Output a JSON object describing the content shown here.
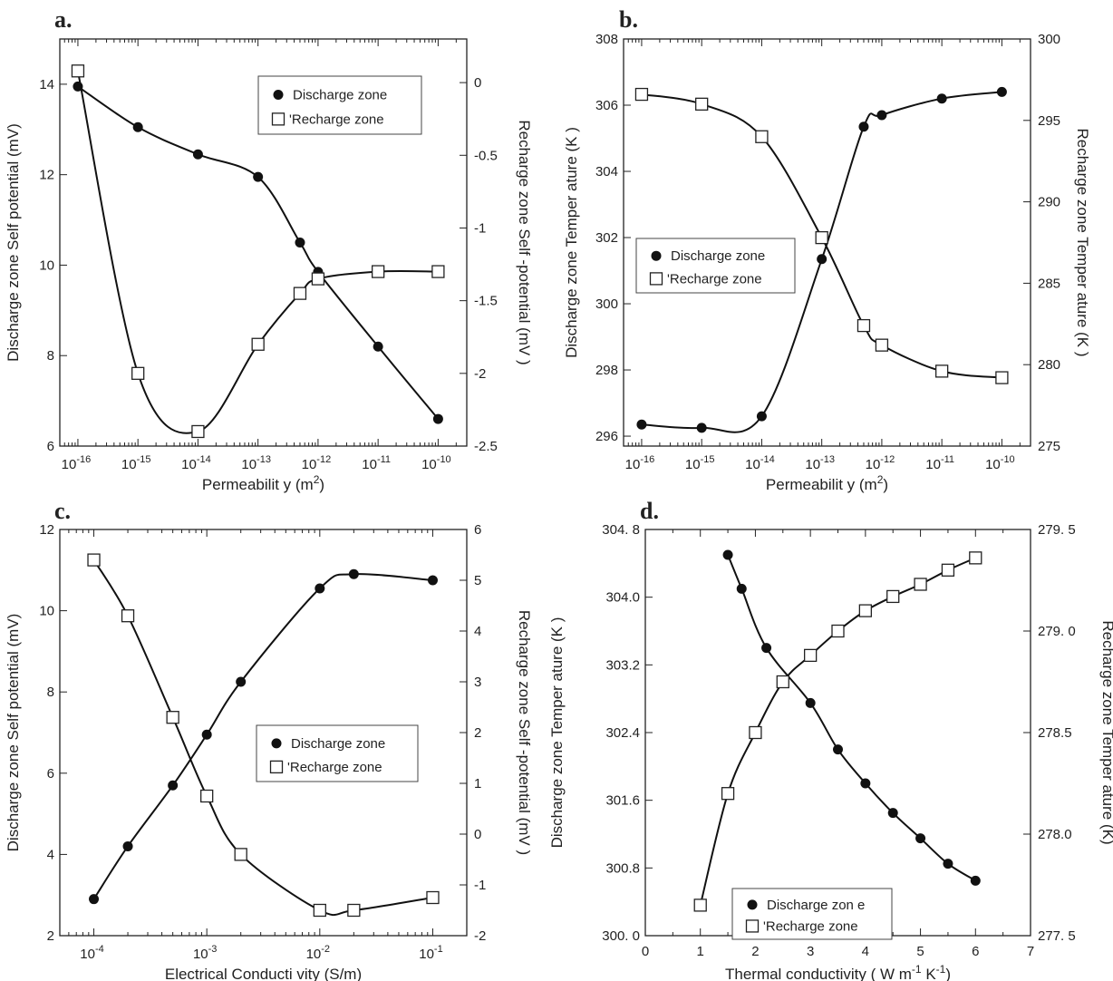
{
  "chart_data": [
    {
      "panel": "a.",
      "type": "line",
      "xscale": "log",
      "xlabel": "Permeabilit y (m",
      "xlabel_sup": "2",
      "xlabel_end": ")",
      "ylabel_left": "Discharge zone Self    potential (mV)",
      "ylabel_right": "Recharge zone Self   -potential (mV  )",
      "xlim": [
        5e-17,
        3e-10
      ],
      "ylim_left": [
        6,
        15
      ],
      "ylim_right": [
        -2.5,
        0.3
      ],
      "x_ticks": [
        {
          "base": "10",
          "exp": "-16",
          "value": 1e-16
        },
        {
          "base": "10",
          "exp": "-15",
          "value": 1e-15
        },
        {
          "base": "10",
          "exp": "-14",
          "value": 1e-14
        },
        {
          "base": "10",
          "exp": "-13",
          "value": 1e-13
        },
        {
          "base": "10",
          "exp": "-12",
          "value": 1e-12
        },
        {
          "base": "10",
          "exp": "-11",
          "value": 1e-11
        },
        {
          "base": "10",
          "exp": "-10",
          "value": 1e-10
        }
      ],
      "y_ticks_left": [
        "6",
        "8",
        "10",
        "12",
        "14"
      ],
      "y_ticks_right": [
        "-2.5",
        "-2",
        "-1.5",
        "-1",
        "-0.5",
        "0"
      ],
      "legend": [
        "Discharge zone",
        "'Recharge zone"
      ],
      "legend_position": "top-right",
      "series": [
        {
          "name": "Discharge zone",
          "axis": "left",
          "marker": "filled-circle",
          "x": [
            1e-16,
            1e-15,
            1e-14,
            1e-13,
            5e-13,
            1e-12,
            1e-11,
            1e-10
          ],
          "y": [
            13.95,
            13.05,
            12.45,
            11.95,
            10.5,
            9.85,
            8.2,
            6.6
          ]
        },
        {
          "name": "'Recharge zone",
          "axis": "right",
          "marker": "open-square",
          "x": [
            1e-16,
            1e-15,
            1e-14,
            1e-13,
            5e-13,
            1e-12,
            1e-11,
            1e-10
          ],
          "y": [
            0.08,
            -2.0,
            -2.4,
            -1.8,
            -1.45,
            -1.35,
            -1.3,
            -1.3
          ]
        }
      ]
    },
    {
      "panel": "b.",
      "type": "line",
      "xscale": "log",
      "xlabel": "Permeabilit y (m",
      "xlabel_sup": "2",
      "xlabel_end": ")",
      "ylabel_left": "Discharge zone   Temper ature (K )",
      "ylabel_right": "Recharge zone   Temper ature (K )",
      "xlim": [
        5e-17,
        3e-10
      ],
      "ylim_left": [
        295.7,
        308
      ],
      "ylim_right": [
        275,
        300
      ],
      "x_ticks": [
        {
          "base": "10",
          "exp": "-16",
          "value": 1e-16
        },
        {
          "base": "10",
          "exp": "-15",
          "value": 1e-15
        },
        {
          "base": "10",
          "exp": "-14",
          "value": 1e-14
        },
        {
          "base": "10",
          "exp": "-13",
          "value": 1e-13
        },
        {
          "base": "10",
          "exp": "-12",
          "value": 1e-12
        },
        {
          "base": "10",
          "exp": "-11",
          "value": 1e-11
        },
        {
          "base": "10",
          "exp": "-10",
          "value": 1e-10
        }
      ],
      "y_ticks_left": [
        "296",
        "298",
        "300",
        "302",
        "304",
        "306",
        "308"
      ],
      "y_ticks_right": [
        "275",
        "280",
        "285",
        "290",
        "295",
        "300"
      ],
      "legend": [
        "Discharge zone",
        "'Recharge zone"
      ],
      "legend_position": "center-left",
      "series": [
        {
          "name": "Discharge zone",
          "axis": "left",
          "marker": "filled-circle",
          "x": [
            1e-16,
            1e-15,
            1e-14,
            1e-13,
            5e-13,
            1e-12,
            1e-11,
            1e-10
          ],
          "y": [
            296.35,
            296.25,
            296.6,
            301.35,
            305.35,
            305.7,
            306.2,
            306.4
          ]
        },
        {
          "name": "'Recharge zone",
          "axis": "right",
          "marker": "open-square",
          "x": [
            1e-16,
            1e-15,
            1e-14,
            1e-13,
            5e-13,
            1e-12,
            1e-11,
            1e-10
          ],
          "y": [
            296.6,
            296.0,
            294.0,
            287.8,
            282.4,
            281.2,
            279.6,
            279.2
          ]
        }
      ]
    },
    {
      "panel": "c.",
      "type": "line",
      "xscale": "log",
      "xlabel": "Electrical Conducti  vity (S/m)",
      "ylabel_left": "Discharge zone Self    potential (mV)",
      "ylabel_right": "Recharge zone    Self -potential (mV  )",
      "xlim": [
        5e-05,
        0.2
      ],
      "ylim_left": [
        2,
        12
      ],
      "ylim_right": [
        -2,
        6
      ],
      "x_ticks": [
        {
          "base": "10",
          "exp": "-4",
          "value": 0.0001
        },
        {
          "base": "10",
          "exp": "-3",
          "value": 0.001
        },
        {
          "base": "10",
          "exp": "-2",
          "value": 0.01
        },
        {
          "base": "10",
          "exp": "-1",
          "value": 0.1
        }
      ],
      "y_ticks_left": [
        "2",
        "4",
        "6",
        "8",
        "10",
        "12"
      ],
      "y_ticks_right": [
        "-2",
        "-1",
        "0",
        "1",
        "2",
        "3",
        "4",
        "5",
        "6"
      ],
      "legend": [
        "Discharge zone",
        "'Recharge zone"
      ],
      "legend_position": "center-right",
      "series": [
        {
          "name": "Discharge zone",
          "axis": "left",
          "marker": "filled-circle",
          "x": [
            0.0001,
            0.0002,
            0.0005,
            0.001,
            0.002,
            0.01,
            0.02,
            0.1
          ],
          "y": [
            2.9,
            4.2,
            5.7,
            6.95,
            8.25,
            10.55,
            10.9,
            10.75
          ]
        },
        {
          "name": "'Recharge zone",
          "axis": "right",
          "marker": "open-square",
          "x": [
            0.0001,
            0.0002,
            0.0005,
            0.001,
            0.002,
            0.01,
            0.02,
            0.1
          ],
          "y": [
            5.4,
            4.3,
            2.3,
            0.75,
            -0.4,
            -1.5,
            -1.5,
            -1.25
          ]
        }
      ]
    },
    {
      "panel": "d.",
      "type": "line",
      "xscale": "linear",
      "xlabel": "Thermal conductivity (  W  m",
      "xlabel_sup": "-1",
      "xlabel_mid": " K",
      "xlabel_sup2": "-1",
      "xlabel_end": ")",
      "ylabel_left": "Discharge zone   Temper ature (K )",
      "ylabel_right": "Recharge zone    Temper ature (K)",
      "xlim": [
        0,
        7
      ],
      "ylim_left": [
        300.0,
        304.8
      ],
      "ylim_right": [
        277.5,
        279.5
      ],
      "x_ticks": [
        "0",
        "1",
        "2",
        "3",
        "4",
        "5",
        "6",
        "7"
      ],
      "y_ticks_left": [
        "300. 0",
        "300.8",
        "301.6",
        "302.4",
        "303.2",
        "304.0",
        "304. 8"
      ],
      "y_ticks_right": [
        "277. 5",
        "278.0",
        "278.5",
        "279. 0",
        "279. 5"
      ],
      "legend": [
        "Discharge zon  e",
        "'Recharge zone"
      ],
      "legend_position": "bottom-right",
      "series": [
        {
          "name": "Discharge zon  e",
          "axis": "left",
          "marker": "filled-circle",
          "x": [
            1.5,
            1.75,
            2.2,
            3,
            3.5,
            4,
            4.5,
            5,
            5.5,
            6
          ],
          "y": [
            304.5,
            304.1,
            303.4,
            302.75,
            302.2,
            301.8,
            301.45,
            301.15,
            300.85,
            300.65
          ]
        },
        {
          "name": "'Recharge zone",
          "axis": "right",
          "marker": "open-square",
          "x": [
            1,
            1.5,
            2,
            2.5,
            3,
            3.5,
            4,
            4.5,
            5,
            5.5,
            6
          ],
          "y": [
            277.65,
            278.2,
            278.5,
            278.75,
            278.88,
            279.0,
            279.1,
            279.17,
            279.23,
            279.3,
            279.36
          ]
        }
      ]
    }
  ]
}
